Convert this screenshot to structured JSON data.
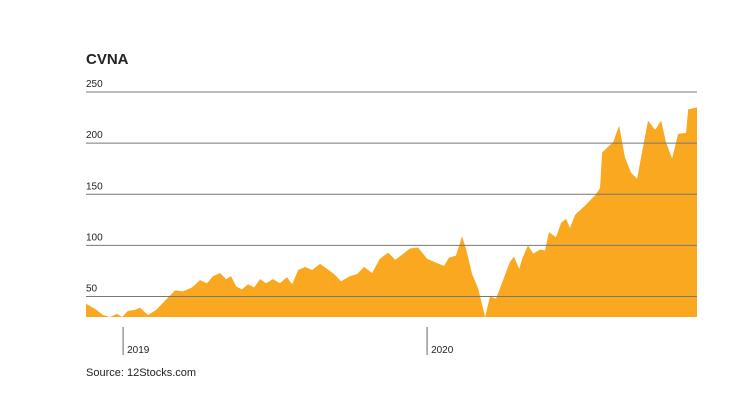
{
  "chart_data": {
    "type": "area",
    "title": "CVNA",
    "source": "Source: 12Stocks.com",
    "color": "#f9a81f",
    "grid": true,
    "x": [
      2018.878,
      2018.908,
      2018.934,
      2018.957,
      2018.98,
      2018.997,
      2019.016,
      2019.039,
      2019.056,
      2019.082,
      2019.109,
      2019.138,
      2019.171,
      2019.197,
      2019.227,
      2019.253,
      2019.276,
      2019.296,
      2019.319,
      2019.339,
      2019.355,
      2019.372,
      2019.391,
      2019.411,
      2019.431,
      2019.451,
      2019.47,
      2019.493,
      2019.516,
      2019.539,
      2019.556,
      2019.576,
      2019.599,
      2019.622,
      2019.648,
      2019.671,
      2019.694,
      2019.717,
      2019.747,
      2019.77,
      2019.793,
      2019.819,
      2019.845,
      2019.872,
      2019.895,
      2019.918,
      2019.944,
      2019.97,
      2020.0,
      2020.03,
      2020.056,
      2020.072,
      2020.095,
      2020.115,
      2020.128,
      2020.148,
      2020.168,
      2020.191,
      2020.207,
      2020.227,
      2020.25,
      2020.273,
      2020.286,
      2020.303,
      2020.313,
      2020.332,
      2020.349,
      2020.372,
      2020.388,
      2020.401,
      2020.424,
      2020.441,
      2020.457,
      2020.47,
      2020.487,
      2020.52,
      2020.553,
      2020.569,
      2020.576,
      2020.612,
      2020.632,
      2020.651,
      2020.671,
      2020.691,
      2020.707,
      2020.727,
      2020.75,
      2020.77,
      2020.786,
      2020.806,
      2020.826,
      2020.852,
      2020.859,
      2020.888
    ],
    "values": [
      43,
      38,
      32,
      30,
      33,
      30,
      36,
      37,
      39,
      32,
      37,
      46,
      56,
      55,
      59,
      66,
      63,
      70,
      73,
      67,
      70,
      60,
      57,
      62,
      59,
      67,
      63,
      67,
      63,
      69,
      62,
      76,
      79,
      76,
      82,
      77,
      72,
      65,
      70,
      72,
      79,
      73,
      87,
      93,
      86,
      91,
      97,
      98,
      87,
      83,
      80,
      88,
      90,
      109,
      97,
      72,
      58,
      30,
      50,
      48,
      66,
      84,
      89,
      77,
      87,
      100,
      92,
      96,
      95,
      113,
      108,
      122,
      126,
      117,
      130,
      139,
      149,
      156,
      191,
      201,
      217,
      186,
      171,
      165,
      191,
      222,
      213,
      222,
      201,
      185,
      209,
      210,
      233,
      235
    ],
    "xlim": [
      2018.878,
      2020.888
    ],
    "xticks": [
      2019,
      2020
    ],
    "ylim": [
      30,
      250
    ],
    "yticks": [
      50,
      100,
      150,
      200,
      250
    ]
  }
}
